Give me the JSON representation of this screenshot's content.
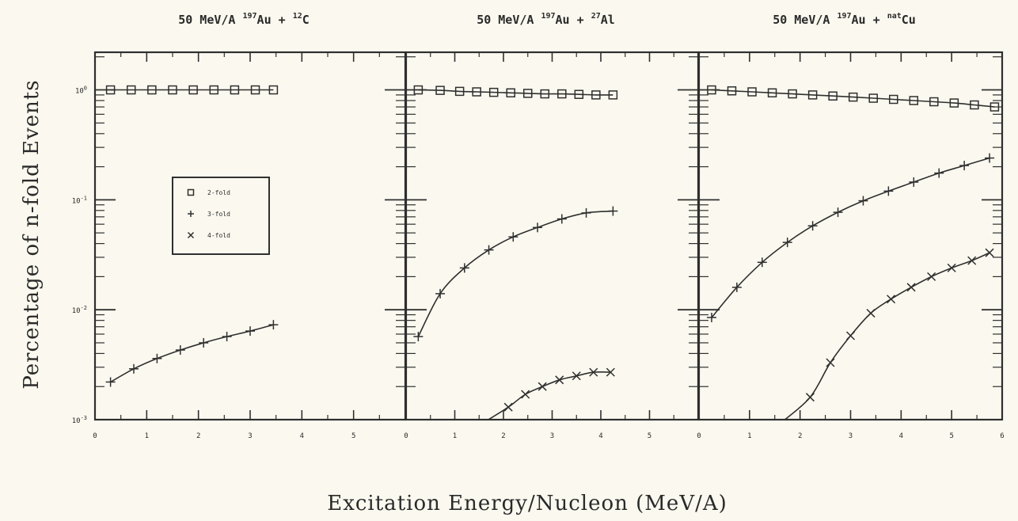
{
  "chart_data": {
    "type": "line",
    "ylabel": "Percentage of n-fold Events",
    "xlabel": "Excitation Energy/Nucleon (MeV/A)",
    "yscale": "log",
    "ylim": [
      0.001,
      2.2
    ],
    "y_tick_labels": [
      "10^-3",
      "10^-2",
      "10^-1",
      "10^0"
    ],
    "legend": {
      "placement": "upper-left of first panel",
      "entries": [
        {
          "label": "2-fold",
          "marker": "square"
        },
        {
          "label": "3-fold",
          "marker": "plus"
        },
        {
          "label": "4-fold",
          "marker": "cross"
        }
      ]
    },
    "panels": [
      {
        "title": {
          "pre": "50 MeV/A ",
          "s1": "197",
          "m1": "Au + ",
          "s2": "12",
          "m2": "C"
        },
        "xlim": [
          0,
          6
        ],
        "x_tick_labels": [
          "0",
          "1",
          "2",
          "3",
          "4",
          "5"
        ],
        "series": [
          {
            "name": "2-fold",
            "marker": "square",
            "x": [
              0.3,
              0.7,
              1.1,
              1.5,
              1.9,
              2.3,
              2.7,
              3.1,
              3.45
            ],
            "y": [
              1.0,
              1.0,
              1.0,
              1.0,
              1.0,
              1.0,
              1.0,
              1.0,
              1.0
            ]
          },
          {
            "name": "3-fold",
            "marker": "plus",
            "x": [
              0.3,
              0.75,
              1.2,
              1.65,
              2.1,
              2.55,
              3.0,
              3.45
            ],
            "y": [
              0.0022,
              0.0029,
              0.0036,
              0.0043,
              0.005,
              0.0057,
              0.0064,
              0.0073
            ]
          }
        ]
      },
      {
        "title": {
          "pre": "50 MeV/A ",
          "s1": "197",
          "m1": "Au + ",
          "s2": "27",
          "m2": "Al"
        },
        "xlim": [
          0,
          6
        ],
        "x_tick_labels": [
          "0",
          "1",
          "2",
          "3",
          "4",
          "5"
        ],
        "series": [
          {
            "name": "2-fold",
            "marker": "square",
            "x": [
              0.25,
              0.7,
              1.1,
              1.45,
              1.8,
              2.15,
              2.5,
              2.85,
              3.2,
              3.55,
              3.9,
              4.25
            ],
            "y": [
              1.0,
              0.99,
              0.97,
              0.96,
              0.95,
              0.94,
              0.93,
              0.92,
              0.92,
              0.91,
              0.9,
              0.9
            ]
          },
          {
            "name": "3-fold",
            "marker": "plus",
            "x": [
              0.25,
              0.7,
              1.2,
              1.7,
              2.2,
              2.7,
              3.2,
              3.7,
              4.25
            ],
            "y": [
              0.0057,
              0.014,
              0.024,
              0.035,
              0.046,
              0.056,
              0.067,
              0.076,
              0.079
            ]
          },
          {
            "name": "4-fold",
            "marker": "cross",
            "x": [
              2.1,
              2.45,
              2.8,
              3.15,
              3.5,
              3.85,
              4.2
            ],
            "y": [
              0.0013,
              0.0017,
              0.002,
              0.0023,
              0.0025,
              0.0027,
              0.0027
            ]
          }
        ]
      },
      {
        "title": {
          "pre": "50 MeV/A ",
          "s1": "197",
          "m1": "Au + ",
          "s2": "nat",
          "m2": "Cu"
        },
        "xlim": [
          0,
          6
        ],
        "x_tick_labels": [
          "0",
          "1",
          "2",
          "3",
          "4",
          "5",
          "6"
        ],
        "series": [
          {
            "name": "2-fold",
            "marker": "square",
            "x": [
              0.25,
              0.65,
              1.05,
              1.45,
              1.85,
              2.25,
              2.65,
              3.05,
              3.45,
              3.85,
              4.25,
              4.65,
              5.05,
              5.45,
              5.85
            ],
            "y": [
              1.0,
              0.98,
              0.96,
              0.94,
              0.92,
              0.9,
              0.88,
              0.86,
              0.84,
              0.82,
              0.8,
              0.78,
              0.76,
              0.73,
              0.7
            ]
          },
          {
            "name": "3-fold",
            "marker": "plus",
            "x": [
              0.25,
              0.75,
              1.25,
              1.75,
              2.25,
              2.75,
              3.25,
              3.75,
              4.25,
              4.75,
              5.25,
              5.75
            ],
            "y": [
              0.0085,
              0.016,
              0.027,
              0.041,
              0.058,
              0.077,
              0.098,
              0.12,
              0.145,
              0.175,
              0.205,
              0.24
            ]
          },
          {
            "name": "4-fold",
            "marker": "cross",
            "x": [
              2.2,
              2.6,
              3.0,
              3.4,
              3.8,
              4.2,
              4.6,
              5.0,
              5.4,
              5.75
            ],
            "y": [
              0.0016,
              0.0033,
              0.0058,
              0.0093,
              0.0125,
              0.016,
              0.02,
              0.024,
              0.028,
              0.033
            ]
          }
        ]
      }
    ]
  }
}
